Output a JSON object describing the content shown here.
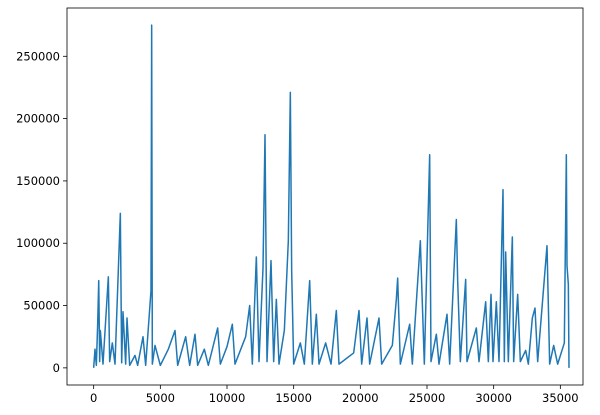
{
  "chart_data": {
    "type": "line",
    "x": [
      0,
      100,
      200,
      300,
      380,
      450,
      500,
      700,
      1100,
      1200,
      1400,
      1600,
      2000,
      2100,
      2200,
      2400,
      2500,
      2700,
      3100,
      3300,
      3700,
      3900,
      4300,
      4350,
      4400,
      4600,
      5000,
      5600,
      6100,
      6300,
      6900,
      7200,
      7600,
      7800,
      8300,
      8600,
      9300,
      9500,
      10000,
      10400,
      10600,
      11400,
      11700,
      11900,
      12200,
      12400,
      12700,
      12850,
      13000,
      13300,
      13500,
      13700,
      13900,
      14300,
      14600,
      14750,
      14850,
      15000,
      15500,
      15800,
      16200,
      16400,
      16700,
      16900,
      17400,
      17800,
      18200,
      18400,
      19500,
      19900,
      20100,
      20500,
      20700,
      21400,
      21600,
      22400,
      22700,
      22800,
      23000,
      23700,
      23900,
      24500,
      24600,
      24800,
      25200,
      25300,
      25700,
      25900,
      26500,
      26700,
      27200,
      27300,
      27500,
      27900,
      28000,
      28700,
      28900,
      29400,
      29600,
      29800,
      29950,
      30200,
      30400,
      30700,
      30800,
      30900,
      31100,
      31400,
      31500,
      31800,
      32000,
      32400,
      32600,
      32900,
      33100,
      33300,
      34000,
      34200,
      34500,
      34800,
      35300,
      35450,
      35500,
      35600,
      35650
    ],
    "series": [
      {
        "color": "#1f77b4",
        "values": [
          0,
          15000,
          2000,
          35000,
          70000,
          5000,
          30000,
          3000,
          73000,
          5000,
          20000,
          3000,
          124000,
          4000,
          45000,
          3000,
          40000,
          2000,
          10000,
          2000,
          25000,
          2000,
          62000,
          275000,
          3000,
          18000,
          2000,
          15000,
          30000,
          2000,
          25000,
          2000,
          27000,
          2000,
          15000,
          2000,
          32000,
          3000,
          17000,
          35000,
          3000,
          25000,
          50000,
          3000,
          89000,
          5000,
          80000,
          187000,
          5000,
          86000,
          5000,
          55000,
          3000,
          30000,
          102000,
          221000,
          78000,
          3000,
          20000,
          3000,
          70000,
          3000,
          43000,
          3000,
          20000,
          3000,
          46000,
          3000,
          12000,
          46000,
          3000,
          40000,
          3000,
          40000,
          3000,
          18000,
          55000,
          72000,
          3000,
          35000,
          3000,
          102000,
          68000,
          3000,
          171000,
          5000,
          27000,
          3000,
          43000,
          3000,
          119000,
          70000,
          5000,
          71000,
          5000,
          32000,
          5000,
          53000,
          5000,
          59000,
          5000,
          53000,
          5000,
          143000,
          5000,
          93000,
          5000,
          105000,
          5000,
          59000,
          5000,
          14000,
          3000,
          40000,
          48000,
          5000,
          98000,
          3000,
          18000,
          3000,
          20000,
          171000,
          82000,
          67000,
          0
        ]
      }
    ],
    "xlim": [
      -2000,
      36700
    ],
    "ylim": [
      -13750,
      288750
    ],
    "xticks": [
      0,
      5000,
      10000,
      15000,
      20000,
      25000,
      30000,
      35000
    ],
    "yticks": [
      0,
      50000,
      100000,
      150000,
      200000,
      250000
    ]
  }
}
